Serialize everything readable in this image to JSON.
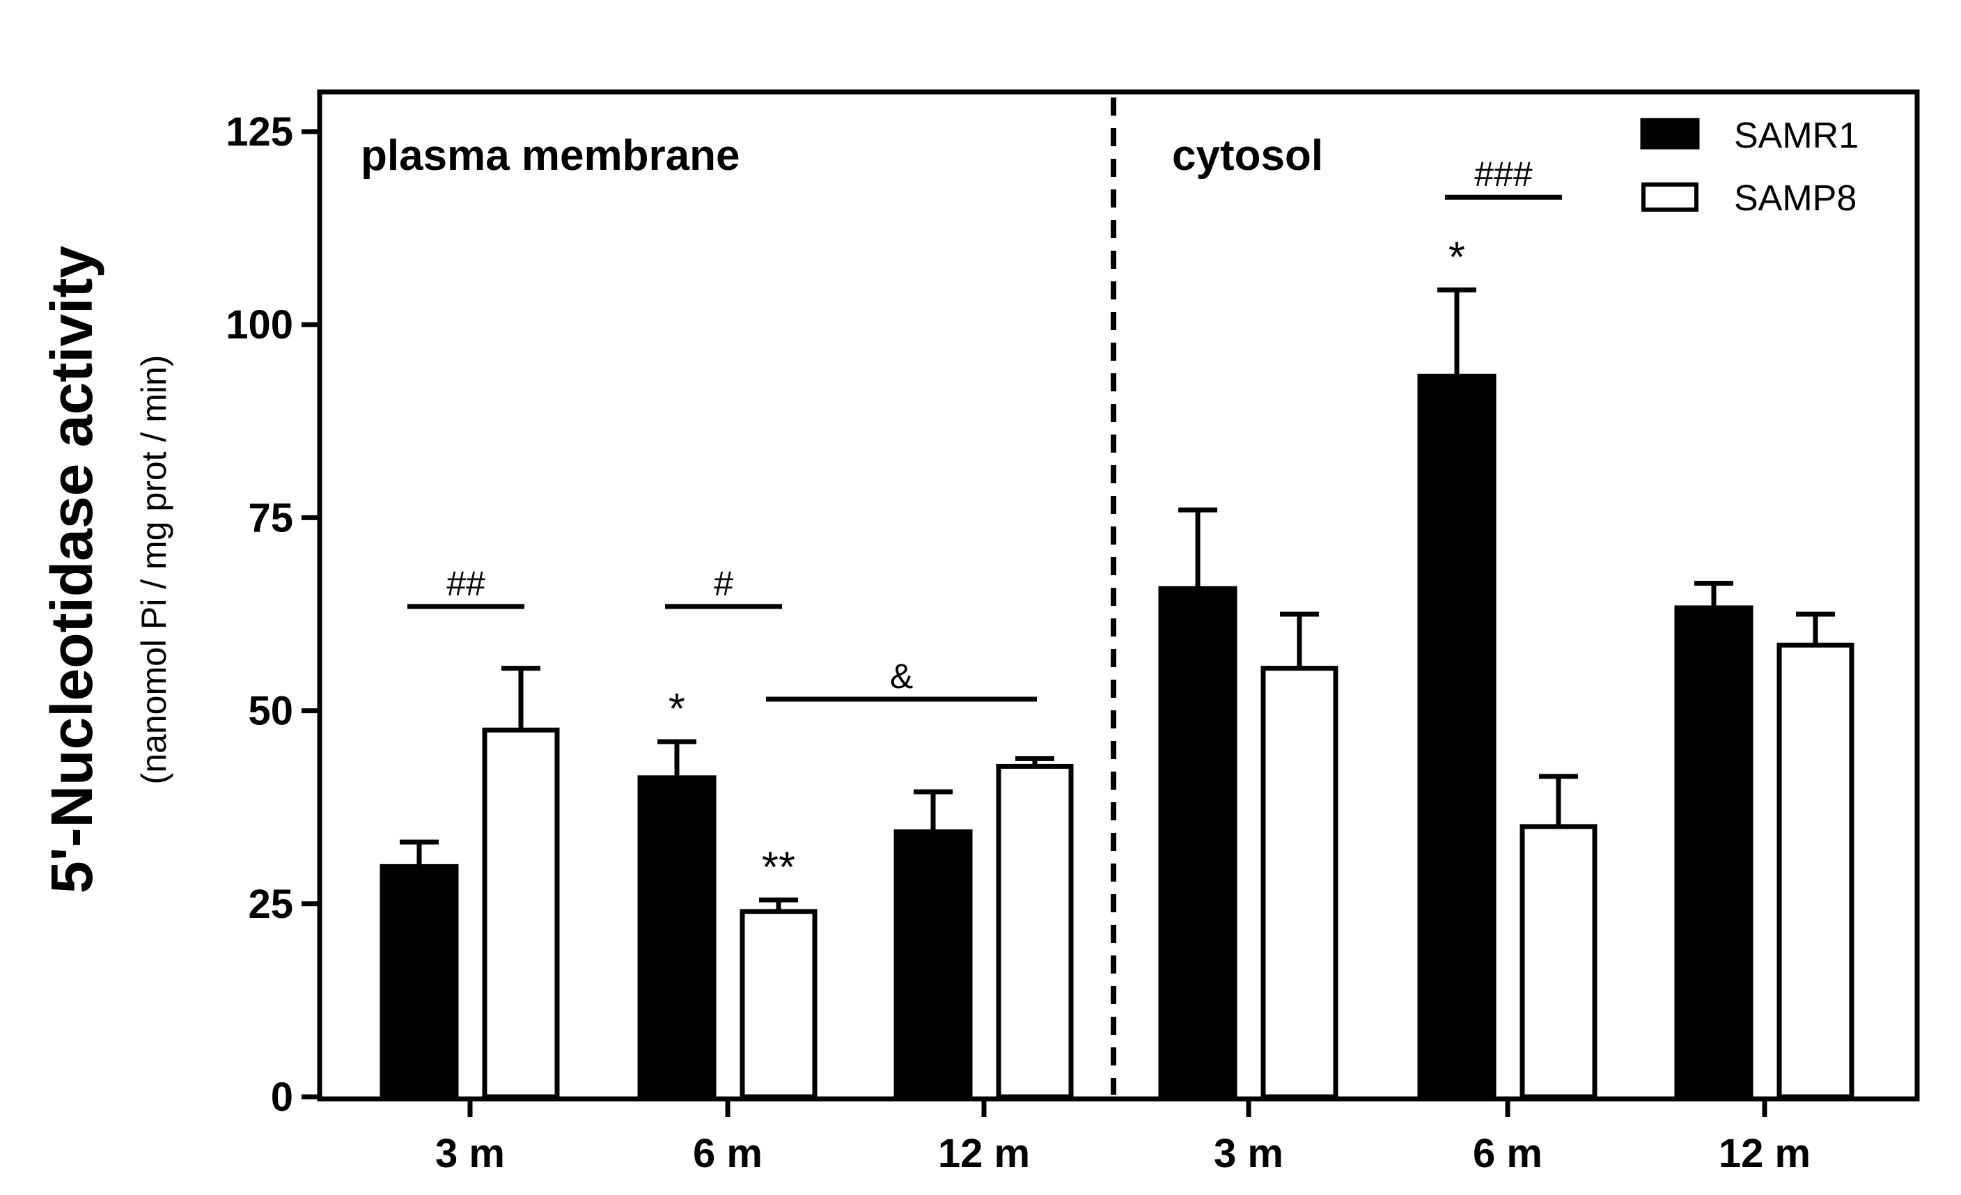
{
  "chart_data": {
    "type": "bar",
    "ylabel": "5'-Nucleotidase activity",
    "ylabel_sub": "(nanomol Pi / mg prot / min)",
    "ylim": [
      0,
      125
    ],
    "yticks": [
      0,
      25,
      50,
      75,
      100,
      125
    ],
    "ytick_labels": [
      "0",
      "25",
      "50",
      "75",
      "100",
      "125"
    ],
    "categories": [
      "3 m",
      "6 m",
      "12 m",
      "3 m",
      "6 m",
      "12 m"
    ],
    "panels": [
      "plasma membrane",
      "cytosol"
    ],
    "series": [
      {
        "name": "SAMR1",
        "fill": "#000000",
        "values": [
          30,
          41.5,
          34.5,
          66,
          93.5,
          63.5
        ],
        "errors": [
          3,
          4.5,
          5,
          10,
          11,
          3
        ]
      },
      {
        "name": "SAMP8",
        "fill": "#ffffff",
        "values": [
          47.5,
          24,
          42.8,
          55.5,
          35,
          58.5
        ],
        "errors": [
          8,
          1.5,
          1,
          7,
          6.5,
          4
        ]
      }
    ],
    "annotations": [
      {
        "text": "##",
        "kind": "bracket",
        "group_from": 0,
        "group_to": 0,
        "y": 63.5
      },
      {
        "text": "#",
        "kind": "bracket",
        "group_from": 1,
        "group_to": 1,
        "y": 63.5
      },
      {
        "text": "&",
        "kind": "bracket",
        "group_from": 1,
        "group_to": 2,
        "y": 51.5
      },
      {
        "text": "###",
        "kind": "bracket",
        "group_from": 4,
        "group_to": 4,
        "y": 116.5
      },
      {
        "text": "*",
        "kind": "star",
        "group": 1,
        "series": 0
      },
      {
        "text": "**",
        "kind": "star",
        "group": 1,
        "series": 1
      },
      {
        "text": "*",
        "kind": "star",
        "group": 4,
        "series": 0
      }
    ],
    "legend_position": "top-right",
    "grid": false
  }
}
